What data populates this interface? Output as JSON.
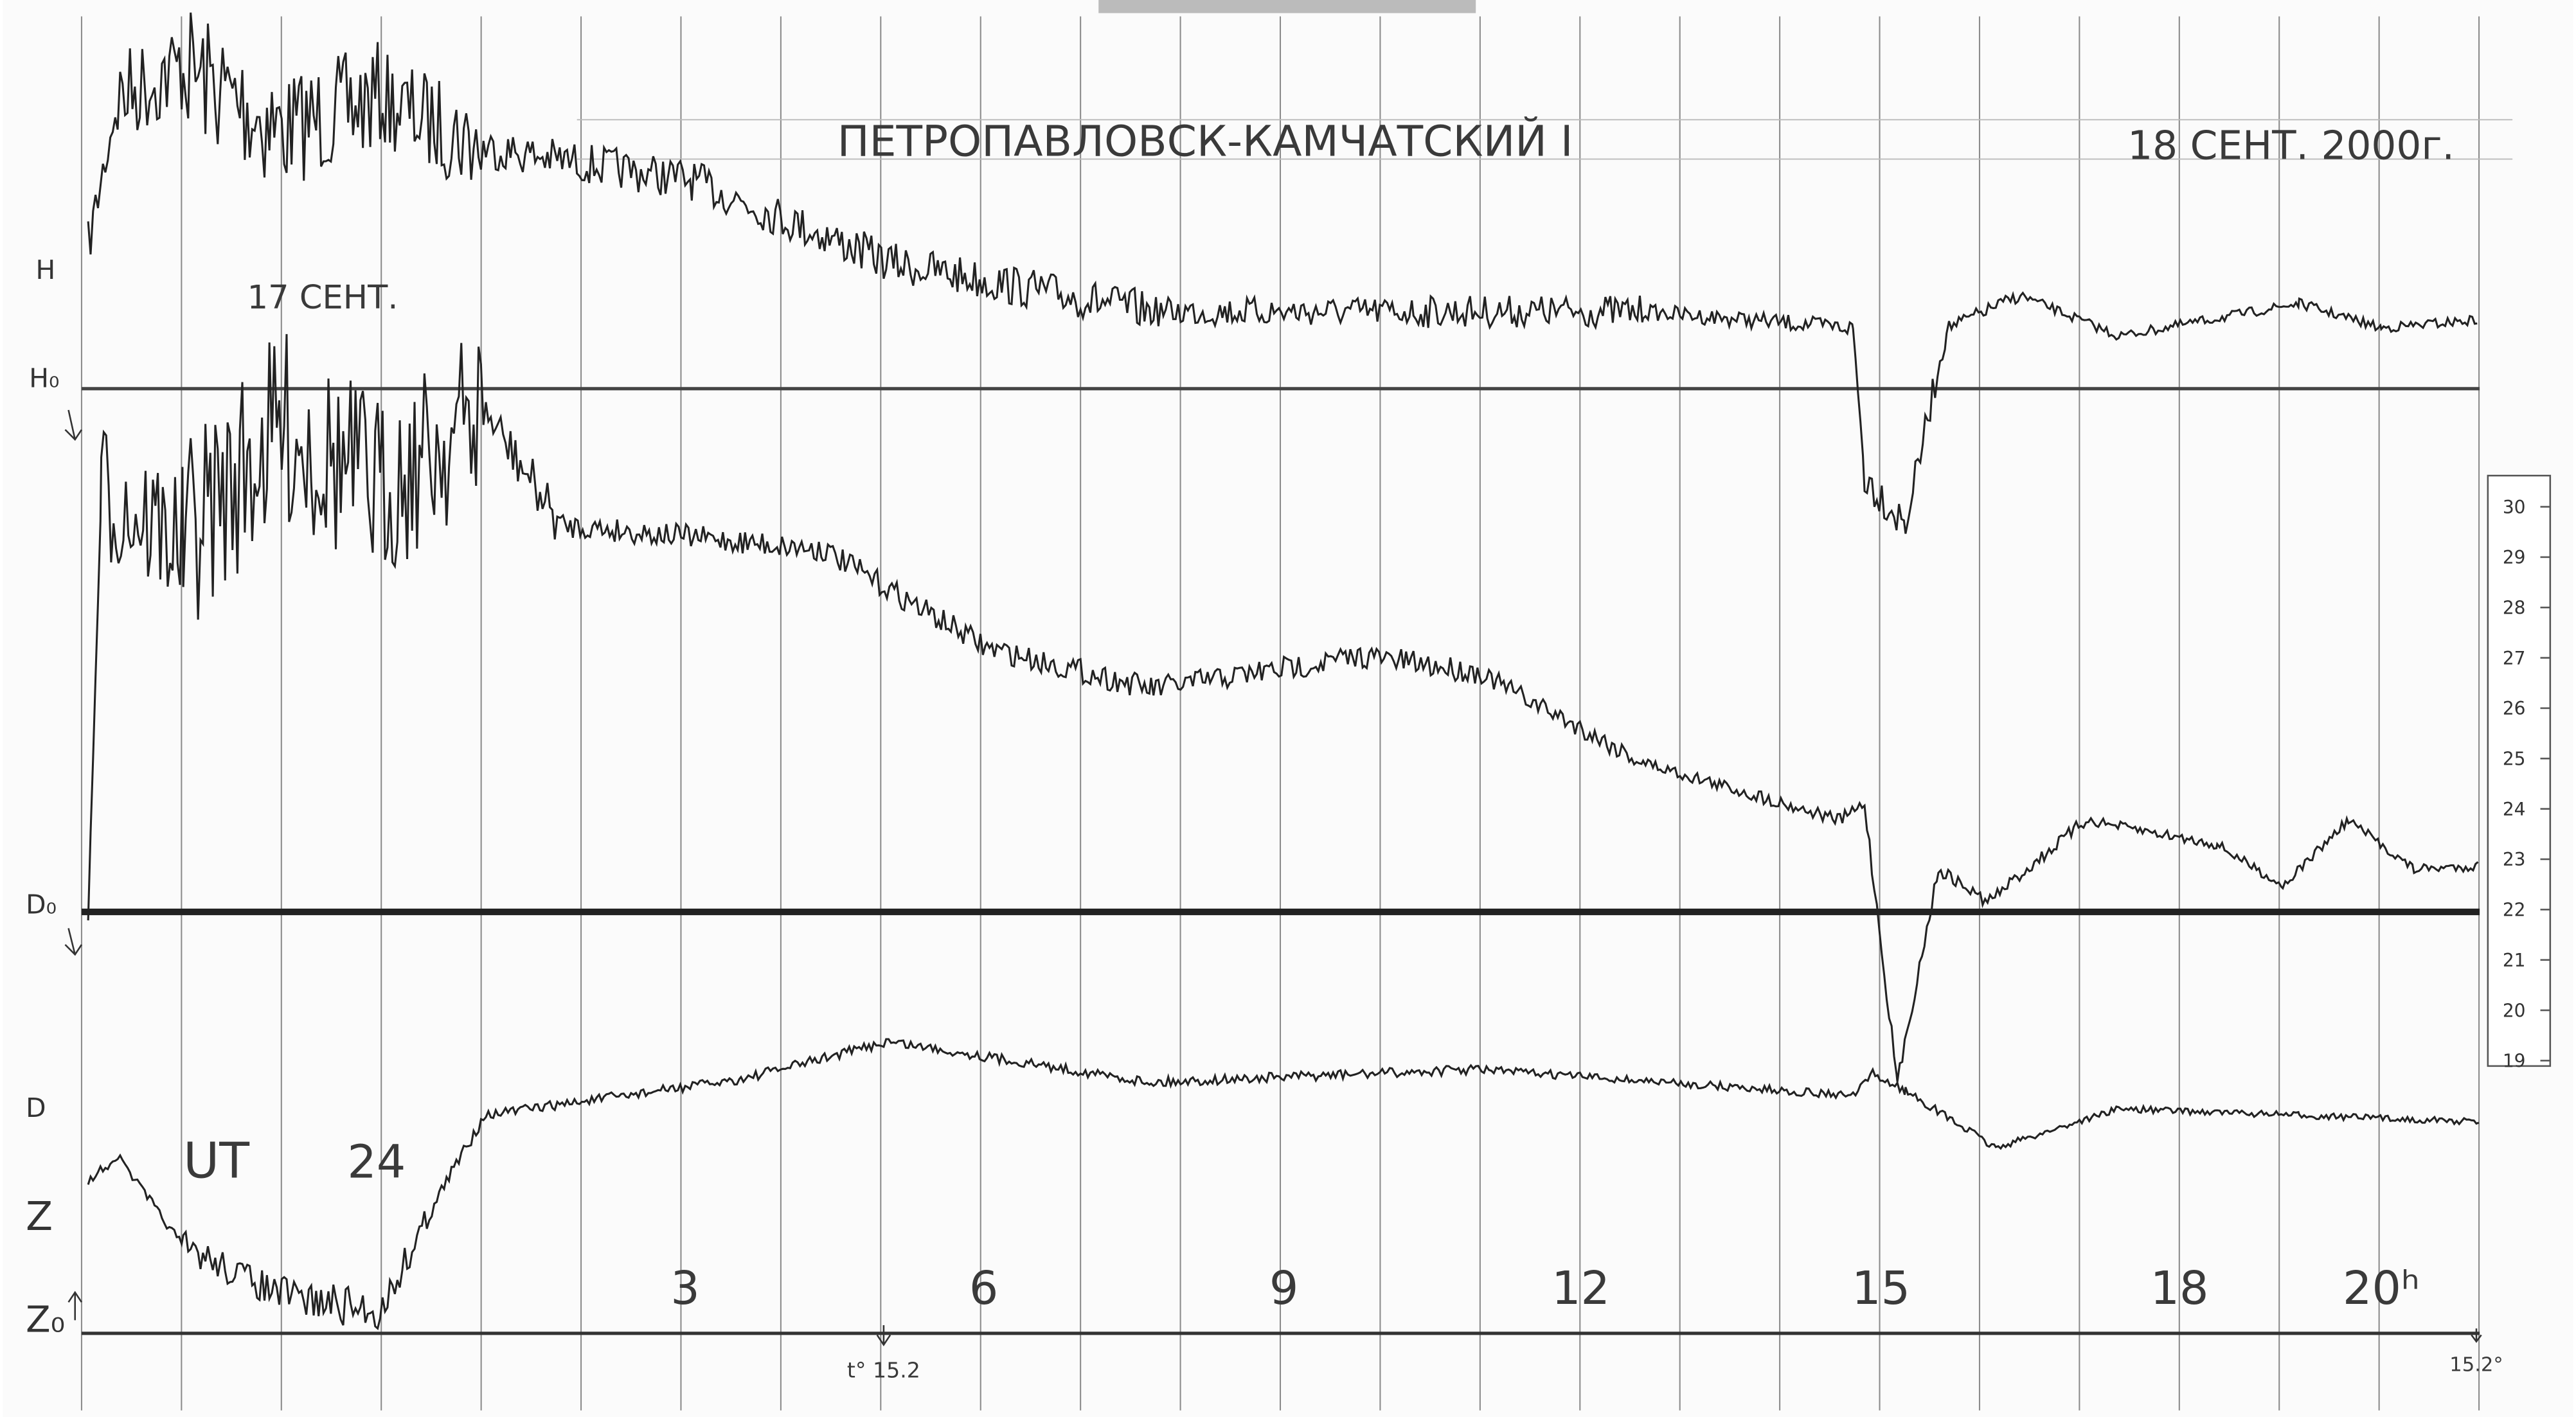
{
  "header": {
    "title": "ПЕТРОПАВЛОВСК-КАМЧАТСКИЙ I",
    "date": "18 СЕНТ. 2000г.",
    "previous_day": "17 СЕНТ."
  },
  "trace_labels": {
    "h": "H",
    "h0": "H₀",
    "d0": "D₀",
    "d": "D",
    "z": "Z",
    "z0": "Z₀"
  },
  "time_axis": {
    "ut": "UT",
    "ut_hour": "24",
    "hours": [
      "3",
      "6",
      "9",
      "12",
      "15",
      "18",
      "20ʰ"
    ]
  },
  "temperature": {
    "start": "t° 15.2",
    "end": "15.2°"
  },
  "thermometer_scale": [
    "30",
    "29",
    "28",
    "27",
    "26",
    "25",
    "24",
    "23",
    "22",
    "21",
    "20",
    "19"
  ]
}
